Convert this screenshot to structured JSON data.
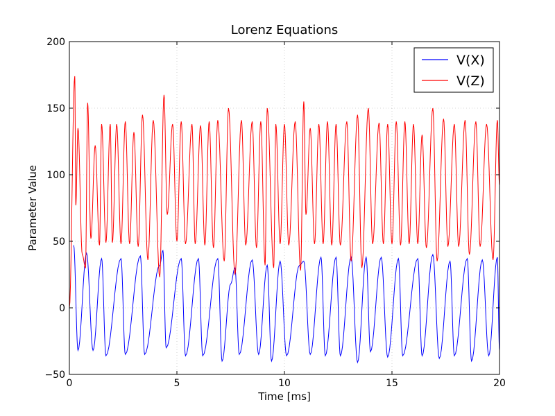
{
  "chart_data": {
    "type": "line",
    "title": "Lorenz Equations",
    "xlabel": "Time [ms]",
    "ylabel": "Parameter Value",
    "xlim": [
      0,
      20
    ],
    "ylim": [
      -50,
      200
    ],
    "xticks": [
      "0",
      "5",
      "10",
      "15",
      "20"
    ],
    "yticks": [
      "−50",
      "0",
      "50",
      "100",
      "150",
      "200"
    ],
    "grid": true,
    "legend_position": "top-right",
    "series": [
      {
        "name": "V(X)",
        "color": "#0000ff",
        "peaks": [
          [
            0.2,
            47
          ],
          [
            0.4,
            -32
          ],
          [
            0.8,
            41
          ],
          [
            1.1,
            -32
          ],
          [
            1.5,
            37
          ],
          [
            1.7,
            -36
          ],
          [
            2.4,
            37
          ],
          [
            2.6,
            -35
          ],
          [
            3.3,
            39
          ],
          [
            3.5,
            -35
          ],
          [
            4.2,
            32
          ],
          [
            4.35,
            43
          ],
          [
            4.5,
            -30
          ],
          [
            5.2,
            37
          ],
          [
            5.4,
            -36
          ],
          [
            6.0,
            37
          ],
          [
            6.2,
            -36
          ],
          [
            6.9,
            37
          ],
          [
            7.1,
            -40
          ],
          [
            7.5,
            18
          ],
          [
            7.7,
            30
          ],
          [
            7.9,
            -35
          ],
          [
            8.5,
            36
          ],
          [
            8.8,
            -35
          ],
          [
            9.2,
            32
          ],
          [
            9.4,
            -40
          ],
          [
            9.8,
            35
          ],
          [
            10.1,
            -36
          ],
          [
            10.7,
            32
          ],
          [
            10.9,
            35
          ],
          [
            11.2,
            -35
          ],
          [
            11.7,
            38
          ],
          [
            11.9,
            -36
          ],
          [
            12.4,
            38
          ],
          [
            12.6,
            -36
          ],
          [
            13.1,
            38
          ],
          [
            13.4,
            -41
          ],
          [
            13.8,
            38
          ],
          [
            14.0,
            -33
          ],
          [
            14.5,
            38
          ],
          [
            14.8,
            -37
          ],
          [
            15.3,
            37
          ],
          [
            15.5,
            -36
          ],
          [
            16.2,
            37
          ],
          [
            16.4,
            -36
          ],
          [
            16.9,
            40
          ],
          [
            17.2,
            -38
          ],
          [
            17.7,
            35
          ],
          [
            17.9,
            -36
          ],
          [
            18.5,
            37
          ],
          [
            18.7,
            -40
          ],
          [
            19.2,
            36
          ],
          [
            19.5,
            -36
          ],
          [
            19.9,
            38
          ],
          [
            20.0,
            -32
          ]
        ]
      },
      {
        "name": "V(Z)",
        "color": "#ff0000",
        "peaks": [
          [
            0.0,
            0
          ],
          [
            0.25,
            174
          ],
          [
            0.3,
            77
          ],
          [
            0.4,
            135
          ],
          [
            0.6,
            40
          ],
          [
            0.75,
            30
          ],
          [
            0.85,
            154
          ],
          [
            1.0,
            52
          ],
          [
            1.2,
            122
          ],
          [
            1.4,
            47
          ],
          [
            1.5,
            138
          ],
          [
            1.7,
            49
          ],
          [
            1.9,
            138
          ],
          [
            2.0,
            49
          ],
          [
            2.2,
            138
          ],
          [
            2.4,
            48
          ],
          [
            2.6,
            140
          ],
          [
            2.8,
            48
          ],
          [
            3.0,
            132
          ],
          [
            3.2,
            46
          ],
          [
            3.4,
            145
          ],
          [
            3.65,
            36
          ],
          [
            3.9,
            141
          ],
          [
            4.2,
            23
          ],
          [
            4.4,
            160
          ],
          [
            4.55,
            70
          ],
          [
            4.8,
            138
          ],
          [
            5.0,
            50
          ],
          [
            5.2,
            140
          ],
          [
            5.4,
            48
          ],
          [
            5.7,
            138
          ],
          [
            5.85,
            48
          ],
          [
            6.1,
            137
          ],
          [
            6.3,
            47
          ],
          [
            6.5,
            140
          ],
          [
            6.7,
            45
          ],
          [
            6.9,
            141
          ],
          [
            7.2,
            35
          ],
          [
            7.4,
            150
          ],
          [
            7.7,
            25
          ],
          [
            8.0,
            141
          ],
          [
            8.2,
            47
          ],
          [
            8.5,
            140
          ],
          [
            8.7,
            45
          ],
          [
            8.9,
            140
          ],
          [
            9.1,
            32
          ],
          [
            9.2,
            150
          ],
          [
            9.5,
            30
          ],
          [
            9.6,
            138
          ],
          [
            9.8,
            48
          ],
          [
            10.0,
            138
          ],
          [
            10.2,
            47
          ],
          [
            10.5,
            140
          ],
          [
            10.75,
            28
          ],
          [
            10.9,
            155
          ],
          [
            11.0,
            70
          ],
          [
            11.2,
            135
          ],
          [
            11.4,
            48
          ],
          [
            11.6,
            138
          ],
          [
            11.8,
            48
          ],
          [
            12.0,
            140
          ],
          [
            12.2,
            47
          ],
          [
            12.4,
            138
          ],
          [
            12.6,
            47
          ],
          [
            12.9,
            140
          ],
          [
            13.1,
            35
          ],
          [
            13.4,
            145
          ],
          [
            13.6,
            30
          ],
          [
            13.9,
            150
          ],
          [
            14.1,
            48
          ],
          [
            14.4,
            139
          ],
          [
            14.6,
            48
          ],
          [
            14.8,
            138
          ],
          [
            15.0,
            48
          ],
          [
            15.2,
            140
          ],
          [
            15.4,
            47
          ],
          [
            15.6,
            140
          ],
          [
            15.8,
            48
          ],
          [
            16.0,
            138
          ],
          [
            16.2,
            48
          ],
          [
            16.4,
            130
          ],
          [
            16.6,
            45
          ],
          [
            16.9,
            150
          ],
          [
            17.1,
            35
          ],
          [
            17.4,
            142
          ],
          [
            17.6,
            46
          ],
          [
            17.9,
            138
          ],
          [
            18.1,
            46
          ],
          [
            18.4,
            141
          ],
          [
            18.6,
            40
          ],
          [
            18.9,
            140
          ],
          [
            19.1,
            46
          ],
          [
            19.4,
            138
          ],
          [
            19.7,
            36
          ],
          [
            19.9,
            141
          ],
          [
            20.0,
            92
          ]
        ]
      }
    ]
  }
}
